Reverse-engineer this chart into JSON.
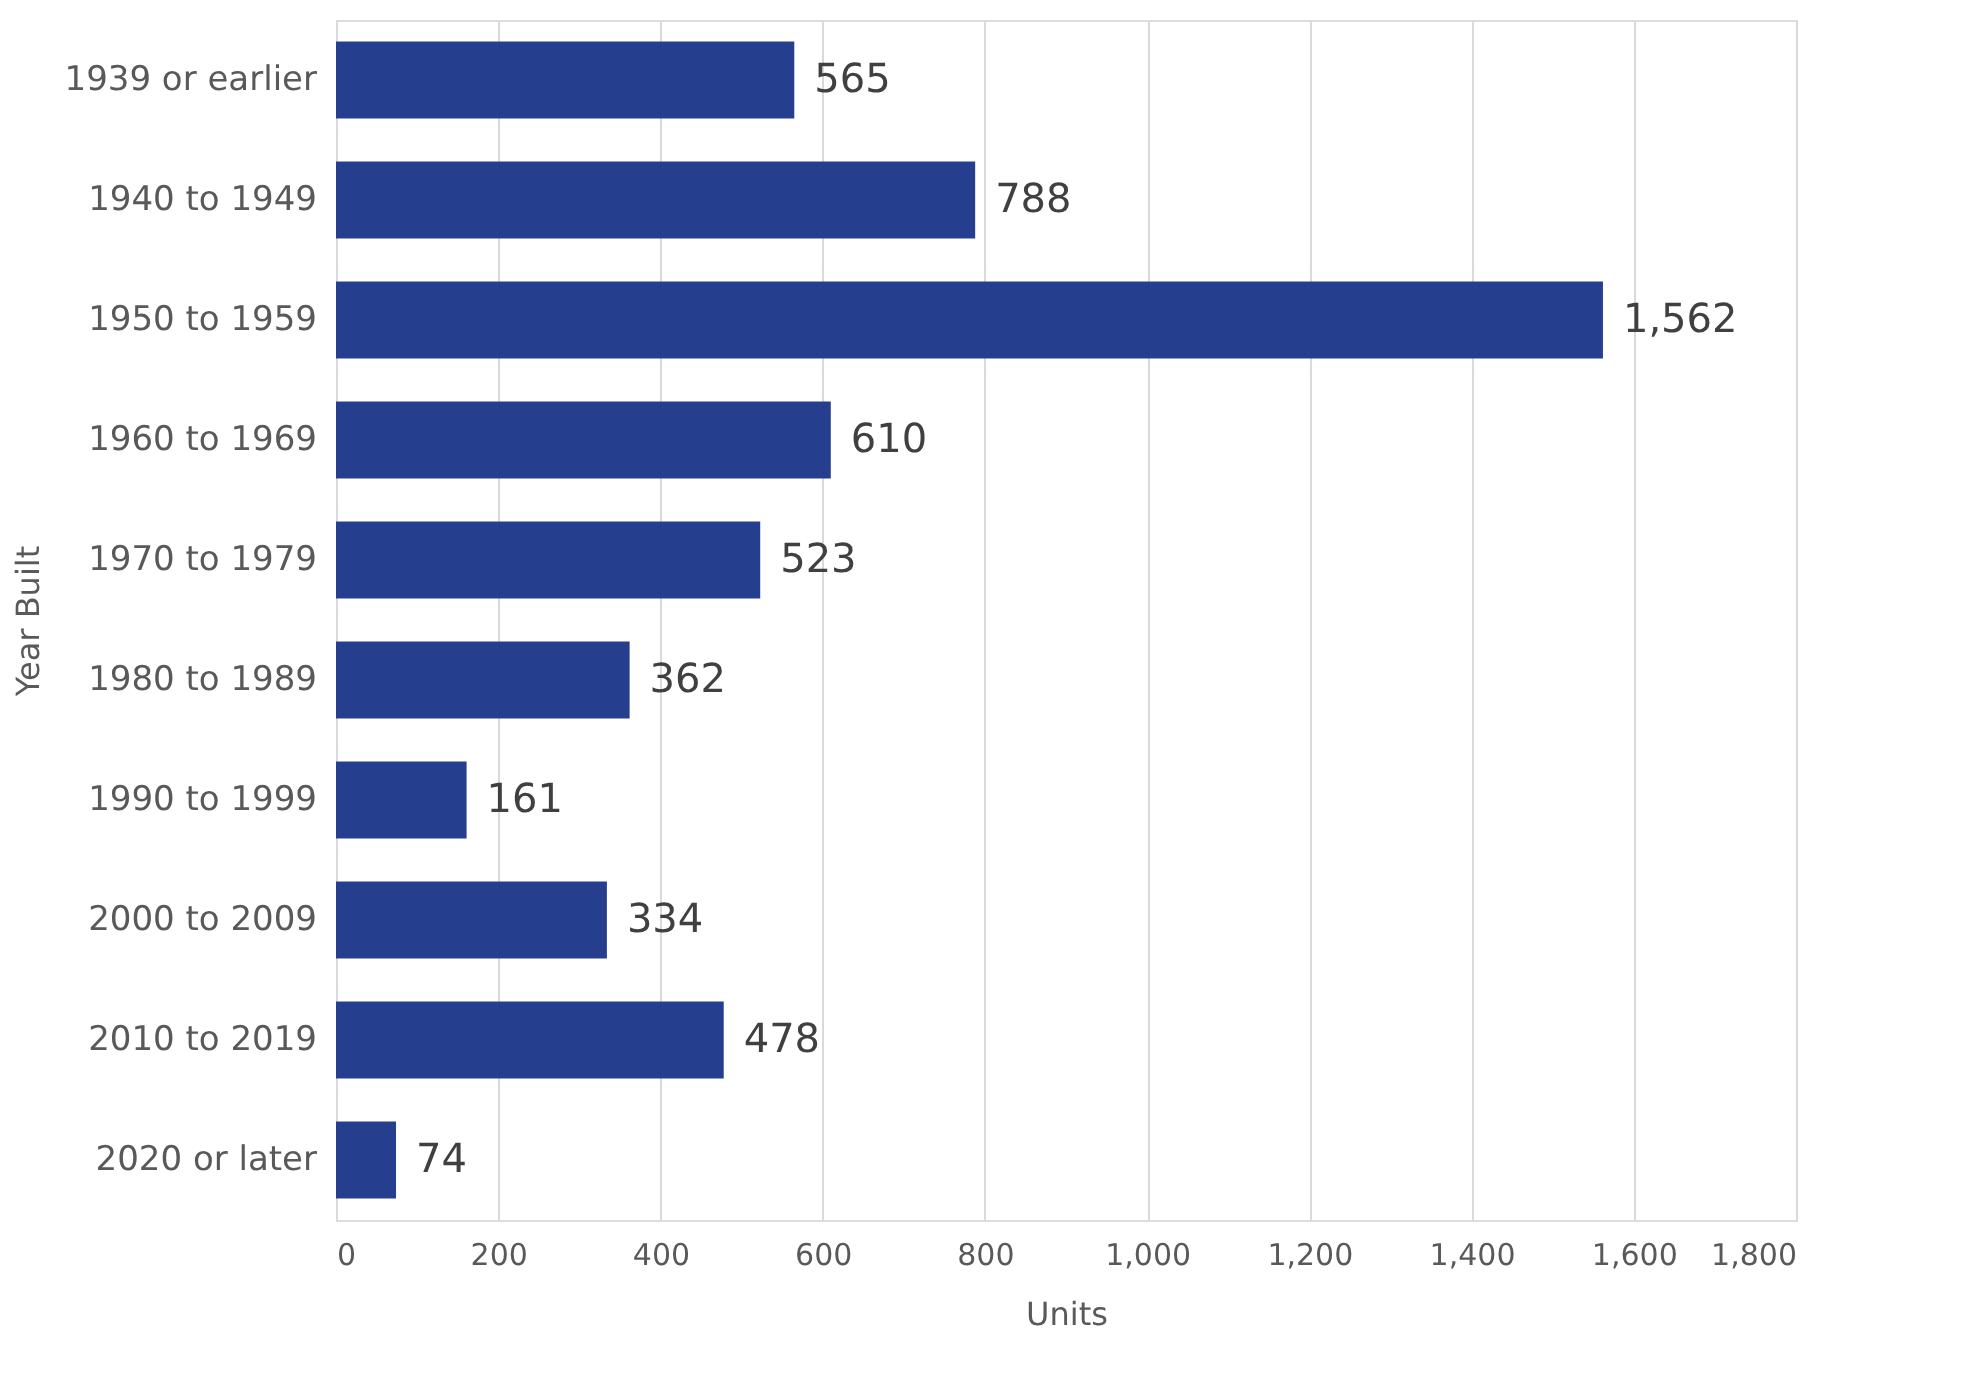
{
  "chart_data": {
    "type": "bar",
    "orientation": "horizontal",
    "xlabel": "Units",
    "ylabel": "Year Built",
    "categories": [
      "1939 or earlier",
      "1940 to 1949",
      "1950 to 1959",
      "1960 to 1969",
      "1970 to 1979",
      "1980 to 1989",
      "1990 to 1999",
      "2000 to 2009",
      "2010 to 2019",
      "2020 or later"
    ],
    "values": [
      565,
      788,
      1562,
      610,
      523,
      362,
      161,
      334,
      478,
      74
    ],
    "color": "#253f8e",
    "xlim": [
      0,
      1800
    ],
    "xticks": [
      0,
      {
        "value": 200,
        "label": "200"
      },
      400,
      600,
      800,
      {
        "value": 1000,
        "label": "1,000"
      },
      {
        "value": 1200,
        "label": "1,200"
      },
      {
        "value": 1400,
        "label": "1,400"
      },
      {
        "value": 1600,
        "label": "1,600"
      },
      {
        "value": 1800,
        "label": "1,800"
      }
    ],
    "value_labels": [
      "565",
      "788",
      "1,562",
      "610",
      "523",
      "362",
      "161",
      "334",
      "478",
      "74"
    ],
    "grid": "x"
  }
}
